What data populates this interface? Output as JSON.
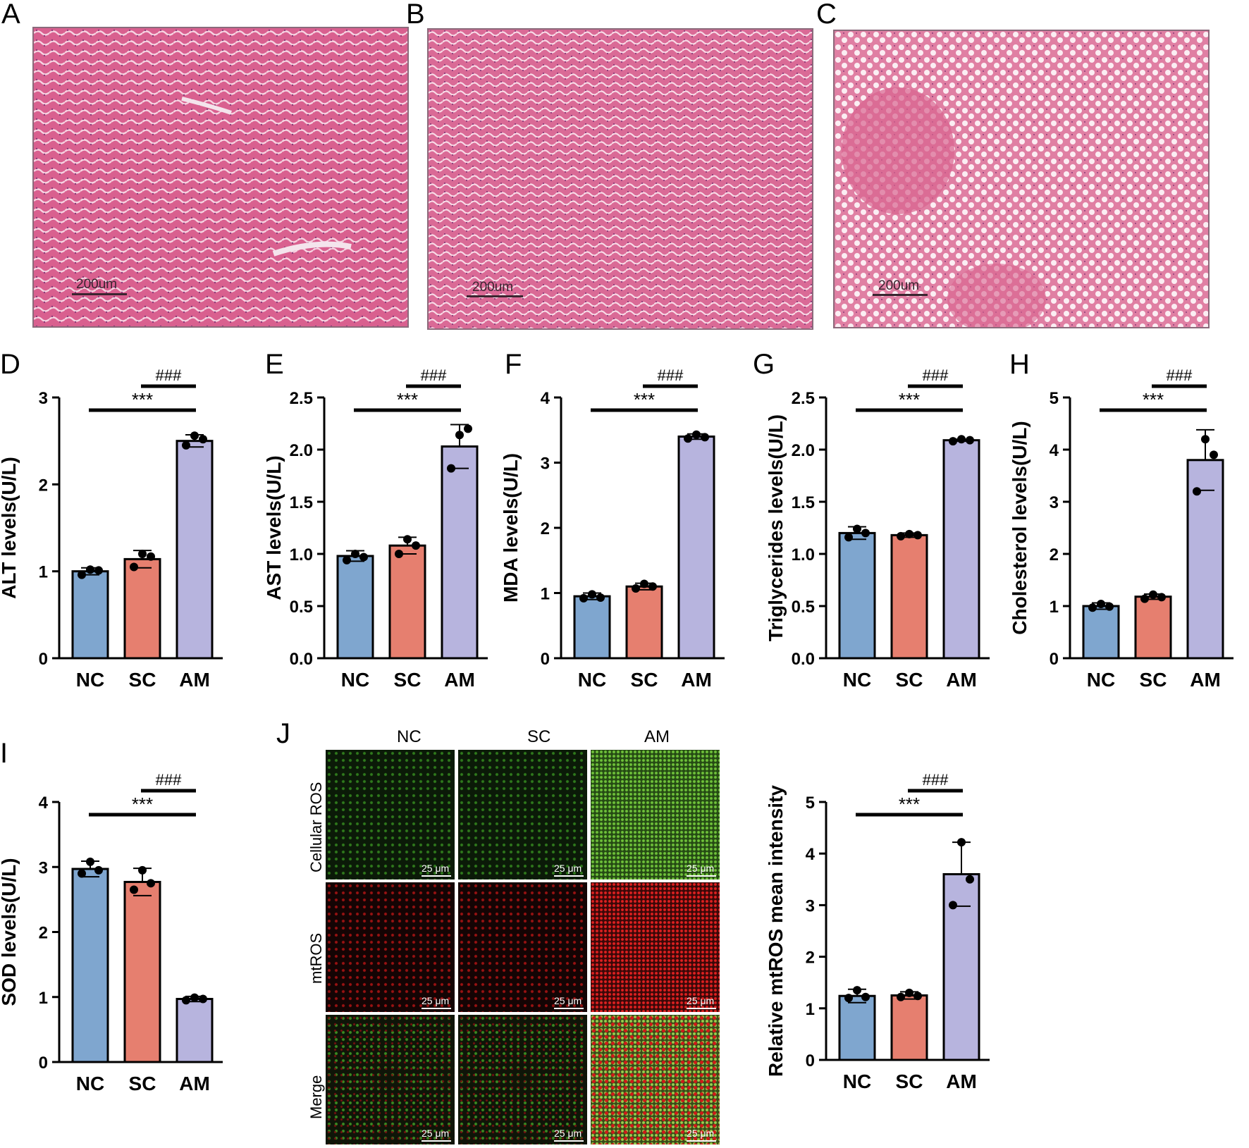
{
  "figure": {
    "panel_letters": [
      "A",
      "B",
      "C",
      "D",
      "E",
      "F",
      "G",
      "H",
      "I",
      "J"
    ],
    "he_panels": [
      {
        "letter": "A",
        "scale": "200um"
      },
      {
        "letter": "B",
        "scale": "200um"
      },
      {
        "letter": "C",
        "scale": "200um"
      }
    ],
    "microscopy": {
      "columns": [
        "NC",
        "SC",
        "AM"
      ],
      "rows": [
        "Cellular ROS",
        "mtROS",
        "Merge"
      ],
      "scale": "25 μm"
    },
    "colors": {
      "NC": "#7fa6cf",
      "SC": "#e67f6f",
      "AM": "#b7b4de"
    }
  },
  "chart_data": [
    {
      "panel": "D",
      "type": "bar",
      "categories": [
        "NC",
        "SC",
        "AM"
      ],
      "values": [
        1.0,
        1.14,
        2.5
      ],
      "errors": [
        0.04,
        0.1,
        0.07
      ],
      "points": [
        [
          0.96,
          1.02,
          1.01
        ],
        [
          1.05,
          1.2,
          1.17
        ],
        [
          2.45,
          2.56,
          2.52
        ]
      ],
      "ylabel": "ALT levels(U/L)",
      "ylim": [
        0,
        3
      ],
      "yticks": [
        "0",
        "1",
        "2",
        "3"
      ],
      "sig": [
        "###",
        "***"
      ]
    },
    {
      "panel": "E",
      "type": "bar",
      "categories": [
        "NC",
        "SC",
        "AM"
      ],
      "values": [
        0.98,
        1.08,
        2.03
      ],
      "errors": [
        0.05,
        0.08,
        0.21
      ],
      "points": [
        [
          0.94,
          1.0,
          0.97
        ],
        [
          1.0,
          1.14,
          1.08
        ],
        [
          1.82,
          2.14,
          2.2
        ]
      ],
      "ylabel": "AST levels(U/L)",
      "ylim": [
        0,
        2.5
      ],
      "yticks": [
        "0.0",
        "0.5",
        "1.0",
        "1.5",
        "2.0",
        "2.5"
      ],
      "sig": [
        "###",
        "***"
      ]
    },
    {
      "panel": "F",
      "type": "bar",
      "categories": [
        "NC",
        "SC",
        "AM"
      ],
      "values": [
        0.95,
        1.1,
        3.4
      ],
      "errors": [
        0.05,
        0.05,
        0.04
      ],
      "points": [
        [
          0.92,
          0.98,
          0.93
        ],
        [
          1.07,
          1.14,
          1.1
        ],
        [
          3.37,
          3.43,
          3.39
        ]
      ],
      "ylabel": "MDA levels(U/L)",
      "ylim": [
        0,
        4
      ],
      "yticks": [
        "0",
        "1",
        "2",
        "3",
        "4"
      ],
      "sig": [
        "###",
        "***"
      ]
    },
    {
      "panel": "G",
      "type": "bar",
      "categories": [
        "NC",
        "SC",
        "AM"
      ],
      "values": [
        1.2,
        1.18,
        2.09
      ],
      "errors": [
        0.06,
        0.02,
        0.01
      ],
      "points": [
        [
          1.16,
          1.24,
          1.2
        ],
        [
          1.17,
          1.19,
          1.18
        ],
        [
          2.08,
          2.1,
          2.09
        ]
      ],
      "ylabel": "Triglycerides levels(U/L)",
      "ylim": [
        0,
        2.5
      ],
      "yticks": [
        "0.0",
        "0.5",
        "1.0",
        "1.5",
        "2.0",
        "2.5"
      ],
      "sig": [
        "###",
        "***"
      ]
    },
    {
      "panel": "H",
      "type": "bar",
      "categories": [
        "NC",
        "SC",
        "AM"
      ],
      "values": [
        1.0,
        1.18,
        3.8
      ],
      "errors": [
        0.06,
        0.05,
        0.58
      ],
      "points": [
        [
          0.97,
          1.04,
          0.99
        ],
        [
          1.14,
          1.22,
          1.17
        ],
        [
          3.2,
          4.2,
          3.9
        ]
      ],
      "ylabel": "Cholesterol levels(U/L)",
      "ylim": [
        0,
        5
      ],
      "yticks": [
        "0",
        "1",
        "2",
        "3",
        "4",
        "5"
      ],
      "sig": [
        "###",
        "***"
      ]
    },
    {
      "panel": "I",
      "type": "bar",
      "categories": [
        "NC",
        "SC",
        "AM"
      ],
      "values": [
        2.97,
        2.77,
        0.97
      ],
      "errors": [
        0.12,
        0.21,
        0.04
      ],
      "points": [
        [
          2.9,
          3.08,
          2.95
        ],
        [
          2.65,
          2.95,
          2.75
        ],
        [
          0.95,
          0.99,
          0.97
        ]
      ],
      "ylabel": "SOD levels(U/L)",
      "ylim": [
        0,
        4
      ],
      "yticks": [
        "0",
        "1",
        "2",
        "3",
        "4"
      ],
      "sig": [
        "###",
        "***"
      ]
    },
    {
      "panel": "J",
      "type": "bar",
      "categories": [
        "NC",
        "SC",
        "AM"
      ],
      "values": [
        1.24,
        1.25,
        3.6
      ],
      "errors": [
        0.13,
        0.07,
        0.62
      ],
      "points": [
        [
          1.2,
          1.35,
          1.22
        ],
        [
          1.22,
          1.3,
          1.24
        ],
        [
          3.0,
          4.22,
          3.5
        ]
      ],
      "ylabel": "Relative mtROS mean intensity",
      "ylim": [
        0,
        5
      ],
      "yticks": [
        "0",
        "1",
        "2",
        "3",
        "4",
        "5"
      ],
      "sig": [
        "###",
        "***"
      ]
    }
  ]
}
